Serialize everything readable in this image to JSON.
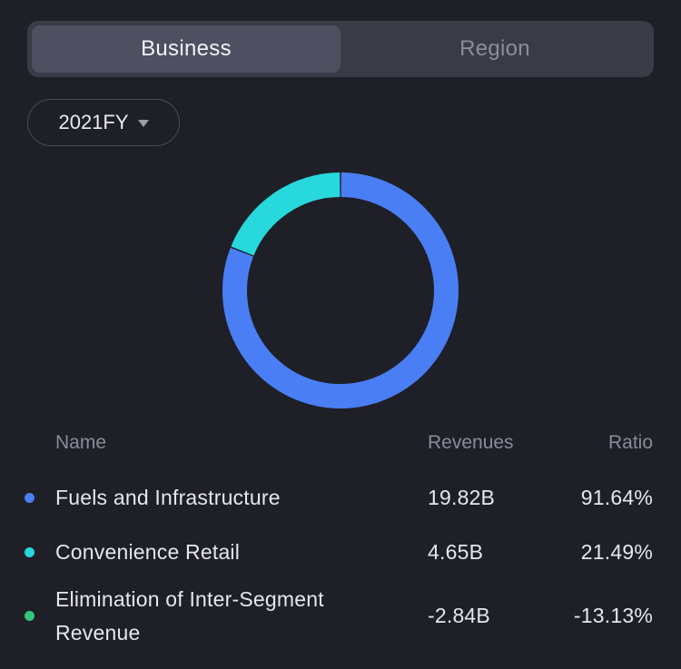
{
  "tabs": [
    {
      "label": "Business",
      "active": true
    },
    {
      "label": "Region",
      "active": false
    }
  ],
  "period_selector": {
    "value": "2021FY"
  },
  "table": {
    "headers": {
      "name": "Name",
      "revenues": "Revenues",
      "ratio": "Ratio"
    },
    "rows": [
      {
        "name": "Fuels and Infrastructure",
        "revenues": "19.82B",
        "ratio": "91.64%",
        "color": "#4a7ef5"
      },
      {
        "name": "Convenience Retail",
        "revenues": "4.65B",
        "ratio": "21.49%",
        "color": "#27d8dc"
      },
      {
        "name": "Elimination of Inter-Segment Revenue",
        "revenues": "-2.84B",
        "ratio": "-13.13%",
        "color": "#34c77b"
      }
    ]
  },
  "chart_data": {
    "type": "pie",
    "donut": true,
    "series": [
      {
        "name": "Fuels and Infrastructure",
        "value": 19.82,
        "color": "#4a7ef5"
      },
      {
        "name": "Convenience Retail",
        "value": 4.65,
        "color": "#27d8dc"
      }
    ],
    "start": "top",
    "direction": "clockwise"
  }
}
